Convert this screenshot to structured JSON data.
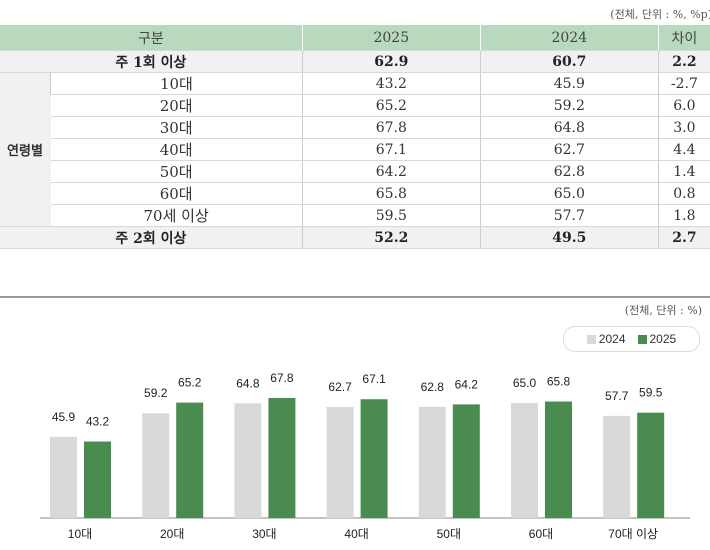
{
  "table": {
    "unit_note": "(전체, 단위 : %, %p)",
    "headers": [
      "구분",
      "2025",
      "2024",
      "차이"
    ],
    "group_label": "연령별",
    "rows": [
      {
        "label": "주 1회 이상",
        "v2025": "62.9",
        "v2024": "60.7",
        "diff": "2.2",
        "summary": true
      },
      {
        "label": "10대",
        "v2025": "43.2",
        "v2024": "45.9",
        "diff": "-2.7"
      },
      {
        "label": "20대",
        "v2025": "65.2",
        "v2024": "59.2",
        "diff": "6.0"
      },
      {
        "label": "30대",
        "v2025": "67.8",
        "v2024": "64.8",
        "diff": "3.0"
      },
      {
        "label": "40대",
        "v2025": "67.1",
        "v2024": "62.7",
        "diff": "4.4"
      },
      {
        "label": "50대",
        "v2025": "64.2",
        "v2024": "62.8",
        "diff": "1.4"
      },
      {
        "label": "60대",
        "v2025": "65.8",
        "v2024": "65.0",
        "diff": "0.8"
      },
      {
        "label": "70세 이상",
        "v2025": "59.5",
        "v2024": "57.7",
        "diff": "1.8"
      },
      {
        "label": "주 2회 이상",
        "v2025": "52.2",
        "v2024": "49.5",
        "diff": "2.7",
        "summary": true
      }
    ]
  },
  "chart_data": {
    "type": "bar",
    "unit_note": "(전체, 단위 : %)",
    "categories": [
      "10대",
      "20대",
      "30대",
      "40대",
      "50대",
      "60대",
      "70대 이상"
    ],
    "series": [
      {
        "name": "2024",
        "color": "#d9d9d9",
        "values": [
          45.9,
          59.2,
          64.8,
          62.7,
          62.8,
          65.0,
          57.7
        ]
      },
      {
        "name": "2025",
        "color": "#4a8c4f",
        "values": [
          43.2,
          65.2,
          67.8,
          67.1,
          64.2,
          65.8,
          59.5
        ]
      }
    ],
    "legend": "top-right",
    "grid": false,
    "ylim": [
      0,
      80
    ]
  }
}
